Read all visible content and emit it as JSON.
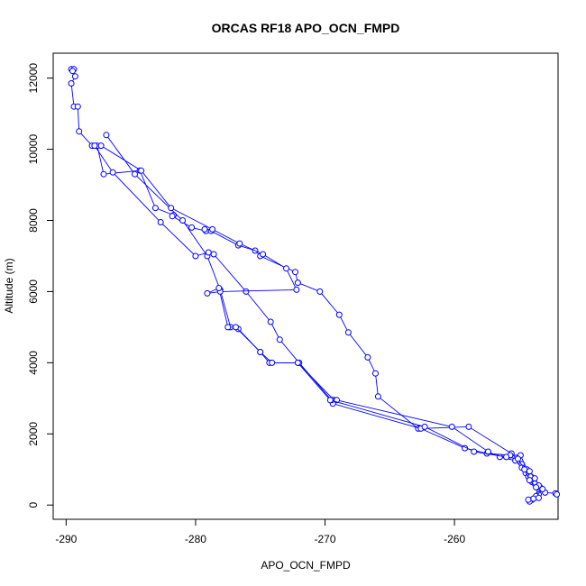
{
  "chart_data": {
    "type": "scatter",
    "title": "ORCAS RF18 APO_OCN_FMPD",
    "xlabel": "APO_OCN_FMPD",
    "ylabel": "Altitude (m)",
    "xlim": [
      -291,
      -252
    ],
    "ylim": [
      -400,
      12700
    ],
    "xticks": [
      -290,
      -280,
      -270,
      -260
    ],
    "yticks": [
      0,
      2000,
      4000,
      6000,
      8000,
      10000,
      12000
    ],
    "grid": false,
    "legend": "none",
    "series": [
      {
        "color": "#0000ff",
        "marker": "circle-open",
        "connected": true,
        "x": [
          -289.6,
          -289.4,
          -289.5,
          -289.3,
          -289.6,
          -289.4,
          -289.1,
          -289.0,
          -288.0,
          -287.6,
          -287.1,
          -284.3,
          -283.1,
          -281.7,
          -281.8,
          -280.3,
          -279.2,
          -279.3,
          -278.8,
          -276.7,
          -275.4,
          -275.0,
          -272.3,
          -272.1,
          -270.4,
          -268.9,
          -268.2,
          -266.7,
          -266.1,
          -265.9,
          -262.8,
          -258.9,
          -255.6,
          -254.8,
          -254.5,
          -254.3,
          -254.0,
          -253.6,
          -253.0,
          -252.2,
          -252.1
        ],
        "y": [
          12250,
          12250,
          12200,
          12050,
          11850,
          11200,
          11200,
          10500,
          10100,
          10100,
          9300,
          9400,
          8350,
          8150,
          8120,
          7800,
          7700,
          7750,
          7700,
          7300,
          7150,
          7000,
          6550,
          6250,
          6000,
          5350,
          4850,
          4150,
          3700,
          3050,
          2150,
          2200,
          1450,
          1150,
          900,
          800,
          650,
          500,
          350,
          330,
          300
        ]
      },
      {
        "color": "#0000ff",
        "marker": "circle-open",
        "connected": true,
        "x": [
          -286.9,
          -284.7,
          -281.0,
          -279.1,
          -278.1,
          -277.3,
          -276.7,
          -275.0,
          -274.3,
          -272.1,
          -269.3,
          -269.4,
          -262.6,
          -259.2,
          -257.5,
          -255.7,
          -254.9,
          -254.4,
          -254.1,
          -253.8,
          -253.4,
          -253.5,
          -254.0,
          -254.2
        ],
        "y": [
          10400,
          9300,
          8000,
          7000,
          6050,
          5000,
          4950,
          4300,
          4000,
          4000,
          2950,
          2850,
          2150,
          1600,
          1450,
          1400,
          1400,
          1000,
          800,
          600,
          500,
          300,
          150,
          100
        ]
      },
      {
        "color": "#0000ff",
        "marker": "circle-open",
        "connected": true,
        "x": [
          -287.8,
          -286.4,
          -282.7,
          -280.0,
          -279.0,
          -278.6,
          -276.1,
          -274.2,
          -273.5,
          -272.0,
          -269.5,
          -269.1,
          -260.2,
          -257.4,
          -256.5,
          -255.3,
          -254.8,
          -254.2,
          -253.8,
          -253.5,
          -253.2,
          -253.7,
          -253.9,
          -254.3
        ],
        "y": [
          10100,
          9350,
          7950,
          7000,
          7100,
          7050,
          6000,
          5150,
          4650,
          4000,
          2950,
          2950,
          2200,
          1500,
          1350,
          1250,
          1050,
          950,
          750,
          550,
          450,
          250,
          180,
          150
        ]
      },
      {
        "color": "#0000ff",
        "marker": "circle-open",
        "connected": true,
        "x": [
          -287.3,
          -284.2,
          -281.9,
          -278.7,
          -276.6,
          -274.8,
          -273.0,
          -272.2,
          -278.1,
          -279.1,
          -278.2,
          -277.5,
          -276.9,
          -275.0,
          -274.1,
          -272.1,
          -269.6,
          -262.3,
          -258.5,
          -256.0,
          -255.1,
          -254.6,
          -254.2,
          -253.7,
          -253.5
        ],
        "y": [
          10100,
          9400,
          8350,
          7750,
          7350,
          7050,
          6650,
          6050,
          6000,
          5950,
          6100,
          5000,
          5000,
          4300,
          4000,
          4000,
          2950,
          2200,
          1500,
          1350,
          1300,
          1000,
          700,
          500,
          200
        ]
      }
    ]
  }
}
